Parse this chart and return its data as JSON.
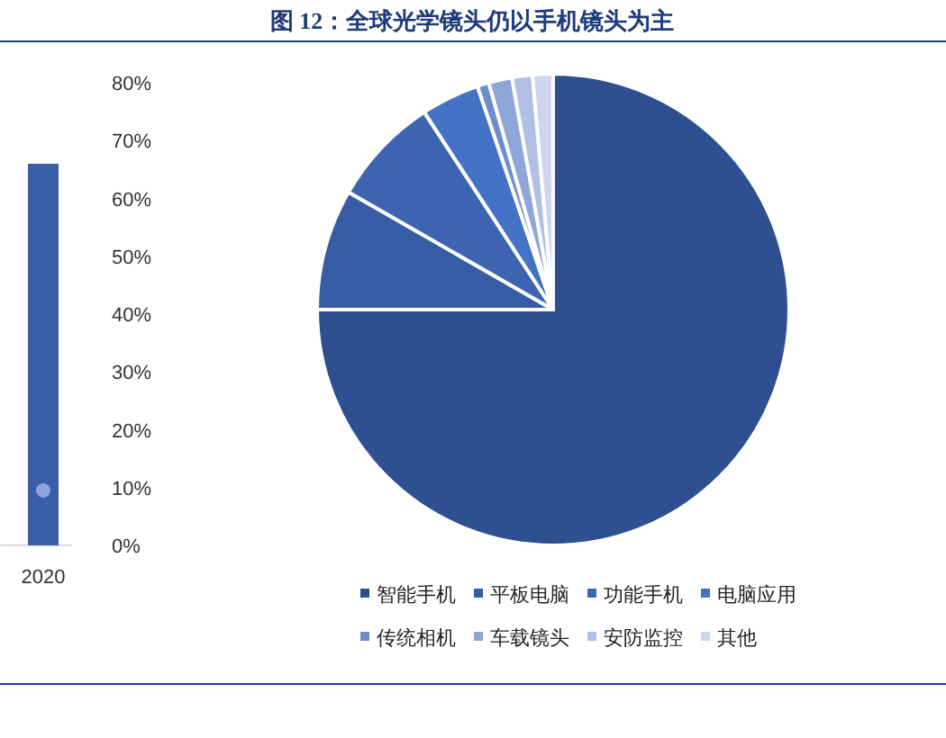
{
  "chart_data": [
    {
      "type": "bar",
      "categories": [
        "2020"
      ],
      "series": [
        {
          "type": "bar",
          "color": "#3a5fa8",
          "values": [
            66
          ]
        },
        {
          "type": "line",
          "color": "#8fa3d8",
          "marker": "circle",
          "values": [
            9.5
          ]
        }
      ],
      "ylim": [
        0,
        80
      ],
      "yticks": [
        {
          "value": 0,
          "label": "0%"
        },
        {
          "value": 10,
          "label": "10%"
        },
        {
          "value": 20,
          "label": "20%"
        },
        {
          "value": 30,
          "label": "30%"
        },
        {
          "value": 40,
          "label": "40%"
        },
        {
          "value": 50,
          "label": "50%"
        },
        {
          "value": 60,
          "label": "60%"
        },
        {
          "value": 70,
          "label": "70%"
        },
        {
          "value": 80,
          "label": "80%"
        }
      ]
    },
    {
      "type": "pie",
      "title": "图 12：全球光学镜头仍以手机镜头为主",
      "categories": [
        "智能手机",
        "平板电脑",
        "功能手机",
        "电脑应用",
        "传统相机",
        "车载镜头",
        "安防监控",
        "其他"
      ],
      "values": [
        75,
        8.3,
        7.5,
        4,
        0.8,
        1.6,
        1.4,
        1.4
      ],
      "colors": [
        "#2e5090",
        "#365ca5",
        "#3c64b0",
        "#4472c4",
        "#6d8ccd",
        "#8fa6d8",
        "#b0bfe3",
        "#cdd6ee"
      ],
      "legend": "bottom"
    }
  ]
}
